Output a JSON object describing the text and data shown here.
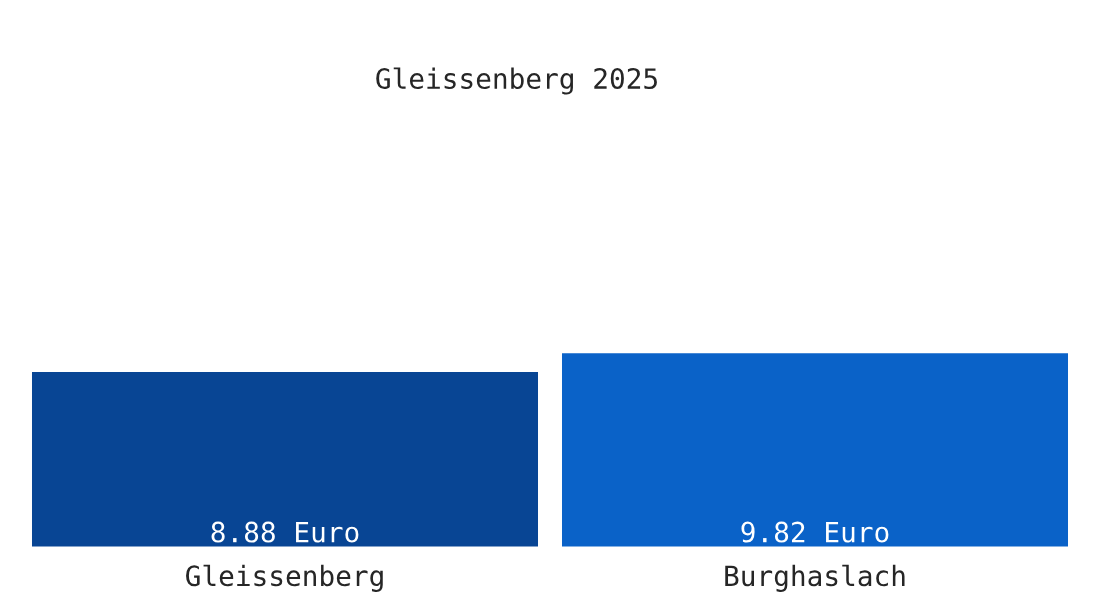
{
  "chart_data": {
    "type": "bar",
    "title": "Gleissenberg 2025",
    "categories": [
      "Gleissenberg",
      "Burghaslach"
    ],
    "values": [
      8.88,
      9.82
    ],
    "value_labels": [
      "8.88 Euro",
      "9.82 Euro"
    ],
    "colors": [
      "#084594",
      "#0a62c8"
    ],
    "grid": false,
    "legend": false
  }
}
